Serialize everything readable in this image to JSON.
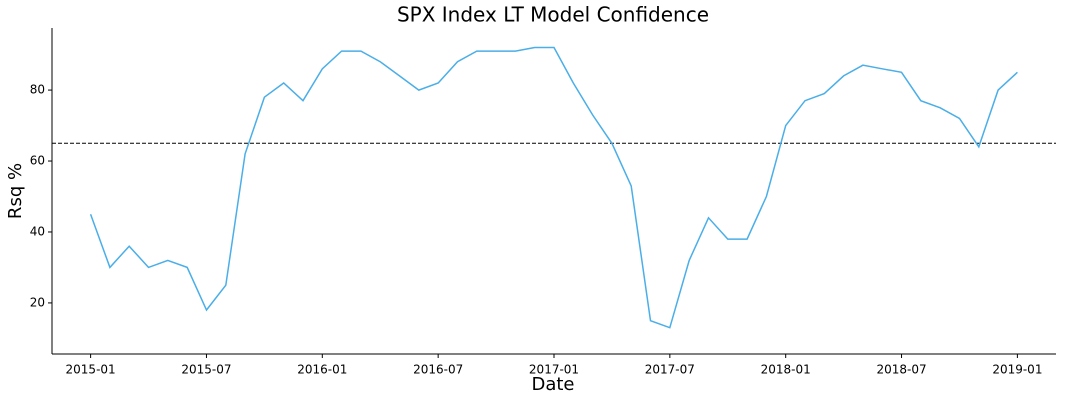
{
  "chart_data": {
    "type": "line",
    "title": "SPX Index LT Model Confidence",
    "x_label": "Date",
    "y_label": "Rsq %",
    "x": [
      "2015-01",
      "2015-02",
      "2015-03",
      "2015-04",
      "2015-05",
      "2015-06",
      "2015-07",
      "2015-08",
      "2015-09",
      "2015-10",
      "2015-11",
      "2015-12",
      "2016-01",
      "2016-02",
      "2016-03",
      "2016-04",
      "2016-05",
      "2016-06",
      "2016-07",
      "2016-08",
      "2016-09",
      "2016-10",
      "2016-11",
      "2016-12",
      "2017-01",
      "2017-02",
      "2017-03",
      "2017-04",
      "2017-05",
      "2017-06",
      "2017-07",
      "2017-08",
      "2017-09",
      "2017-10",
      "2017-11",
      "2017-12",
      "2018-01",
      "2018-02",
      "2018-03",
      "2018-04",
      "2018-05",
      "2018-06",
      "2018-07",
      "2018-08",
      "2018-09",
      "2018-10",
      "2018-11",
      "2018-12",
      "2019-01"
    ],
    "series": [
      {
        "color": "#4aaee8",
        "values": [
          45,
          30,
          36,
          30,
          32,
          30,
          18,
          25,
          62,
          78,
          82,
          77,
          86,
          91,
          91,
          88,
          84,
          80,
          82,
          88,
          91,
          91,
          91,
          92,
          92,
          82,
          73,
          65,
          53,
          15,
          13,
          32,
          44,
          38,
          38,
          50,
          70,
          77,
          79,
          84,
          87,
          86,
          85,
          77,
          75,
          72,
          64,
          80,
          85
        ]
      }
    ],
    "threshold": 65,
    "xlim": [
      "2014-11",
      "2019-03"
    ],
    "xticks": [
      "2015-01",
      "2015-07",
      "2016-01",
      "2016-07",
      "2017-01",
      "2017-07",
      "2018-01",
      "2018-07",
      "2019-01"
    ],
    "ylim": [
      5.6,
      97.5
    ],
    "yticks": [
      20,
      40,
      60,
      80
    ]
  }
}
